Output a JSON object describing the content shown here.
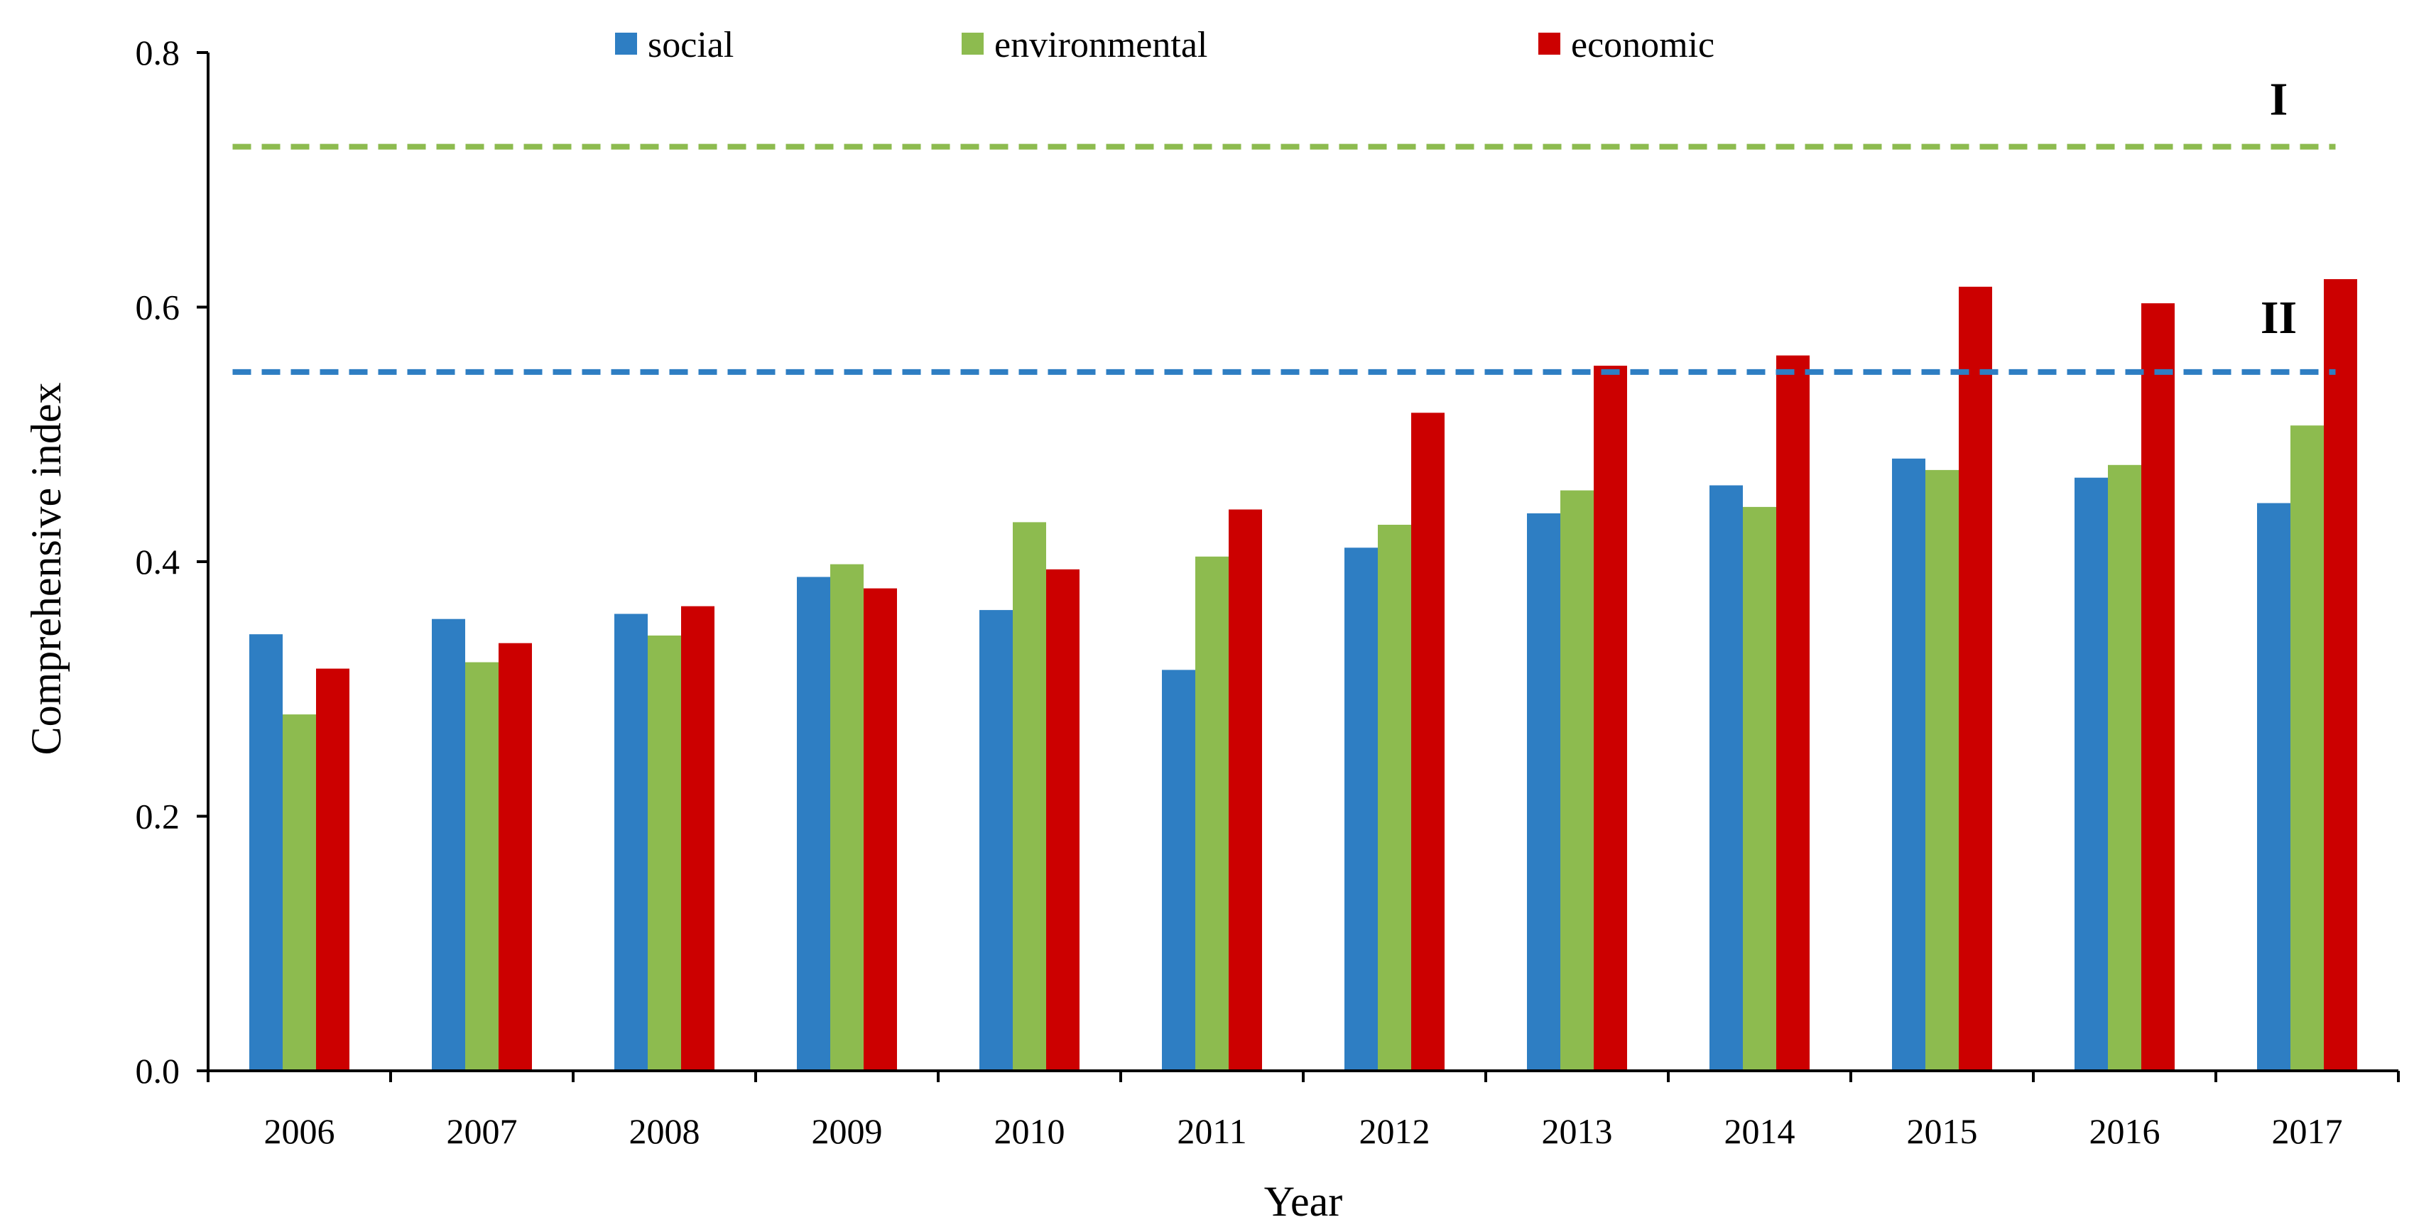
{
  "chart_data": {
    "type": "bar",
    "title": "",
    "xlabel": "Year",
    "ylabel": "Comprehensive index",
    "ylim": [
      0,
      0.8
    ],
    "yticks": [
      "0.0",
      "0.2",
      "0.4",
      "0.6",
      "0.8"
    ],
    "categories": [
      "2006",
      "2007",
      "2008",
      "2009",
      "2010",
      "2011",
      "2012",
      "2013",
      "2014",
      "2015",
      "2016",
      "2017"
    ],
    "series": [
      {
        "name": "social",
        "color": "#2E7EC3",
        "values": [
          0.343,
          0.355,
          0.359,
          0.388,
          0.362,
          0.315,
          0.411,
          0.438,
          0.46,
          0.481,
          0.466,
          0.446
        ]
      },
      {
        "name": "environmental",
        "color": "#8DBB4F",
        "values": [
          0.28,
          0.321,
          0.342,
          0.398,
          0.431,
          0.404,
          0.429,
          0.456,
          0.443,
          0.472,
          0.476,
          0.507
        ]
      },
      {
        "name": "economic",
        "color": "#CC0000",
        "values": [
          0.316,
          0.336,
          0.365,
          0.379,
          0.394,
          0.441,
          0.517,
          0.554,
          0.562,
          0.616,
          0.603,
          0.622
        ]
      }
    ],
    "reference_lines": [
      {
        "label": "I",
        "value": 0.726,
        "color": "#8DBB4F",
        "style": "dashed"
      },
      {
        "label": "II",
        "value": 0.549,
        "color": "#2E7EC3",
        "style": "dashed"
      }
    ],
    "legend": {
      "position": "top-center",
      "entries": [
        "social",
        "environmental",
        "economic"
      ]
    },
    "grid": false
  }
}
